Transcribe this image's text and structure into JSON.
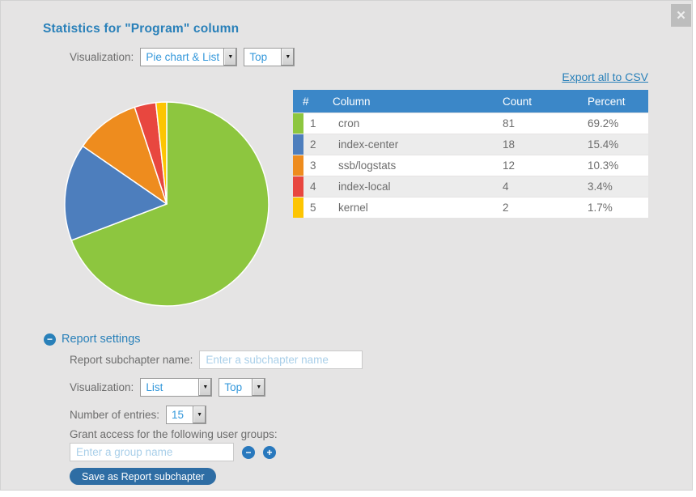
{
  "dialog": {
    "title": "Statistics for \"Program\" column"
  },
  "icons": {
    "close": "✕",
    "collapse": "−",
    "remove_group": "−",
    "add_group": "+",
    "dropdown_arrow": "▼"
  },
  "top_controls": {
    "visualization_label": "Visualization:",
    "chart_type_value": "Pie chart & List",
    "top_value": "Top"
  },
  "export_link": "Export all to CSV",
  "table": {
    "headers": [
      "#",
      "Column",
      "Count",
      "Percent"
    ],
    "rows": [
      {
        "index": "1",
        "column": "cron",
        "count": "81",
        "percent": "69.2%",
        "color": "#8dc63f"
      },
      {
        "index": "2",
        "column": "index-center",
        "count": "18",
        "percent": "15.4%",
        "color": "#4d7ebd"
      },
      {
        "index": "3",
        "column": "ssb/logstats",
        "count": "12",
        "percent": "10.3%",
        "color": "#ee8c1e"
      },
      {
        "index": "4",
        "column": "index-local",
        "count": "4",
        "percent": "3.4%",
        "color": "#e8473f"
      },
      {
        "index": "5",
        "column": "kernel",
        "count": "2",
        "percent": "1.7%",
        "color": "#fdc502"
      }
    ]
  },
  "chart_data": {
    "type": "pie",
    "title": "",
    "categories": [
      "cron",
      "index-center",
      "ssb/logstats",
      "index-local",
      "kernel"
    ],
    "values": [
      69.2,
      15.4,
      10.3,
      3.4,
      1.7
    ],
    "counts": [
      81,
      18,
      12,
      4,
      2
    ],
    "colors": [
      "#8dc63f",
      "#4d7ebd",
      "#ee8c1e",
      "#e8473f",
      "#fdc502"
    ],
    "start_angle_deg": 0,
    "direction": "clockwise",
    "legend_position": "none"
  },
  "report_settings": {
    "section_title": "Report settings",
    "subchapter_label": "Report subchapter name:",
    "subchapter_placeholder": "Enter a subchapter name",
    "subchapter_value": "",
    "visualization_label": "Visualization:",
    "visualization_value": "List",
    "top_value": "Top",
    "entries_label": "Number of entries:",
    "entries_value": "15",
    "grant_access_label": "Grant access for the following user groups:",
    "group_placeholder": "Enter a group name",
    "group_value": "",
    "save_button_label": "Save as Report subchapter"
  },
  "palette": {
    "accent": "#2980b9",
    "table_header_bg": "#3b87c8",
    "link": "#2980b9",
    "select_text": "#3498db",
    "save_btn_bg": "#2e6da4",
    "icon_btn_bg": "#2878bd",
    "placeholder": "#a9cfe9",
    "label": "#6d6d6d",
    "row_alt": "#ececec",
    "dialog_bg": "#e5e4e4",
    "close_bg": "#bdbdbd"
  }
}
